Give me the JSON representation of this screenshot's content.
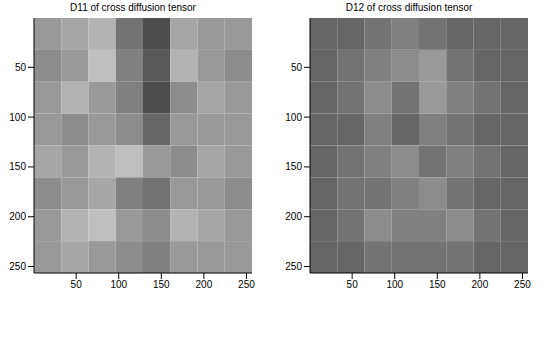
{
  "chart_data": [
    {
      "type": "heatmap",
      "title": "D11 of cross diffusion tensor",
      "xlim": [
        0.5,
        256.5
      ],
      "ylim": [
        0.5,
        256.5
      ],
      "xticks": [
        50,
        100,
        150,
        200,
        250
      ],
      "yticks": [
        50,
        100,
        150,
        200,
        250
      ],
      "cells": [
        [
          0.6,
          0.65,
          0.7,
          0.45,
          0.3,
          0.65,
          0.6,
          0.6
        ],
        [
          0.55,
          0.6,
          0.75,
          0.5,
          0.35,
          0.7,
          0.6,
          0.55
        ],
        [
          0.6,
          0.7,
          0.6,
          0.5,
          0.3,
          0.55,
          0.65,
          0.6
        ],
        [
          0.6,
          0.55,
          0.6,
          0.55,
          0.4,
          0.6,
          0.6,
          0.6
        ],
        [
          0.65,
          0.6,
          0.7,
          0.75,
          0.6,
          0.55,
          0.65,
          0.6
        ],
        [
          0.55,
          0.6,
          0.65,
          0.5,
          0.45,
          0.6,
          0.6,
          0.55
        ],
        [
          0.6,
          0.7,
          0.75,
          0.6,
          0.55,
          0.7,
          0.65,
          0.6
        ],
        [
          0.6,
          0.65,
          0.6,
          0.55,
          0.5,
          0.6,
          0.6,
          0.6
        ]
      ]
    },
    {
      "type": "heatmap",
      "title": "D12 of cross diffusion tensor",
      "xlim": [
        0.5,
        256.5
      ],
      "ylim": [
        0.5,
        256.5
      ],
      "xticks": [
        50,
        100,
        150,
        200,
        250
      ],
      "yticks": [
        50,
        100,
        150,
        200,
        250
      ],
      "cells": [
        [
          0.4,
          0.4,
          0.45,
          0.5,
          0.45,
          0.4,
          0.4,
          0.4
        ],
        [
          0.4,
          0.45,
          0.5,
          0.55,
          0.6,
          0.45,
          0.4,
          0.4
        ],
        [
          0.4,
          0.45,
          0.55,
          0.45,
          0.6,
          0.5,
          0.45,
          0.4
        ],
        [
          0.4,
          0.4,
          0.5,
          0.4,
          0.5,
          0.45,
          0.4,
          0.4
        ],
        [
          0.4,
          0.45,
          0.5,
          0.55,
          0.45,
          0.5,
          0.45,
          0.4
        ],
        [
          0.4,
          0.45,
          0.45,
          0.5,
          0.55,
          0.45,
          0.4,
          0.4
        ],
        [
          0.4,
          0.45,
          0.55,
          0.5,
          0.5,
          0.55,
          0.45,
          0.4
        ],
        [
          0.4,
          0.4,
          0.45,
          0.45,
          0.45,
          0.45,
          0.4,
          0.4
        ]
      ]
    }
  ]
}
